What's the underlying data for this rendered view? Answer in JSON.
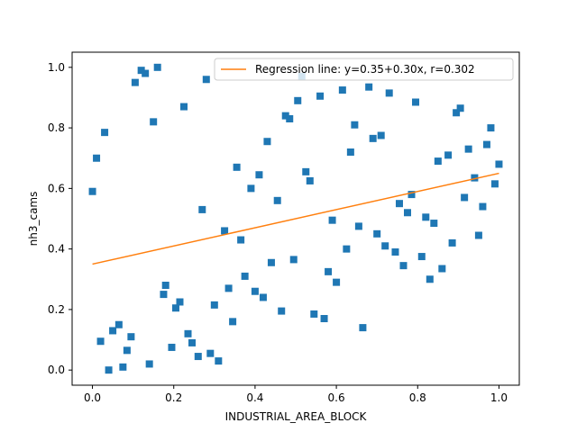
{
  "chart_data": {
    "type": "scatter",
    "xlabel": "INDUSTRIAL_AREA_BLOCK",
    "ylabel": "nh3_cams",
    "xlim": [
      -0.05,
      1.05
    ],
    "ylim": [
      -0.05,
      1.05
    ],
    "xticks": [
      "0.0",
      "0.2",
      "0.4",
      "0.6",
      "0.8",
      "1.0"
    ],
    "yticks": [
      "0.0",
      "0.2",
      "0.4",
      "0.6",
      "0.8",
      "1.0"
    ],
    "grid": false,
    "legend_position": "top-right",
    "colors": {
      "points": "#1f77b4",
      "line": "#ff7f0e"
    },
    "series": [
      {
        "kind": "points",
        "x": [
          0.0,
          0.01,
          0.02,
          0.03,
          0.04,
          0.05,
          0.065,
          0.075,
          0.085,
          0.095,
          0.105,
          0.12,
          0.13,
          0.14,
          0.15,
          0.16,
          0.175,
          0.18,
          0.195,
          0.205,
          0.215,
          0.225,
          0.235,
          0.245,
          0.26,
          0.27,
          0.28,
          0.29,
          0.3,
          0.31,
          0.325,
          0.335,
          0.345,
          0.355,
          0.365,
          0.375,
          0.39,
          0.4,
          0.41,
          0.42,
          0.43,
          0.44,
          0.455,
          0.465,
          0.475,
          0.485,
          0.495,
          0.505,
          0.515,
          0.525,
          0.535,
          0.545,
          0.56,
          0.57,
          0.58,
          0.59,
          0.6,
          0.615,
          0.625,
          0.635,
          0.645,
          0.655,
          0.665,
          0.68,
          0.69,
          0.7,
          0.71,
          0.72,
          0.73,
          0.745,
          0.755,
          0.765,
          0.775,
          0.785,
          0.795,
          0.81,
          0.82,
          0.83,
          0.84,
          0.85,
          0.86,
          0.875,
          0.885,
          0.895,
          0.905,
          0.915,
          0.925,
          0.94,
          0.95,
          0.96,
          0.97,
          0.98,
          0.99,
          1.0
        ],
        "y": [
          0.59,
          0.7,
          0.095,
          0.785,
          0.0,
          0.13,
          0.15,
          0.01,
          0.065,
          0.11,
          0.95,
          0.99,
          0.98,
          0.02,
          0.82,
          1.0,
          0.25,
          0.28,
          0.075,
          0.205,
          0.225,
          0.87,
          0.12,
          0.09,
          0.045,
          0.53,
          0.96,
          0.055,
          0.215,
          0.03,
          0.46,
          0.27,
          0.16,
          0.67,
          0.43,
          0.31,
          0.6,
          0.26,
          0.645,
          0.24,
          0.755,
          0.355,
          0.56,
          0.195,
          0.84,
          0.83,
          0.365,
          0.89,
          0.97,
          0.655,
          0.625,
          0.185,
          0.905,
          0.17,
          0.325,
          0.495,
          0.29,
          0.925,
          0.4,
          0.72,
          0.81,
          0.475,
          0.14,
          0.935,
          0.765,
          0.45,
          0.775,
          0.41,
          0.915,
          0.39,
          0.55,
          0.345,
          0.52,
          0.58,
          0.885,
          0.375,
          0.505,
          0.3,
          0.485,
          0.69,
          0.335,
          0.71,
          0.42,
          0.85,
          0.865,
          0.57,
          0.73,
          0.635,
          0.445,
          0.54,
          0.745,
          0.8,
          0.615,
          0.68
        ]
      },
      {
        "kind": "line",
        "name": "Regression line: y=0.35+0.30x, r=0.302",
        "intercept": 0.35,
        "slope": 0.3,
        "x_range": [
          0.0,
          1.0
        ]
      }
    ]
  }
}
